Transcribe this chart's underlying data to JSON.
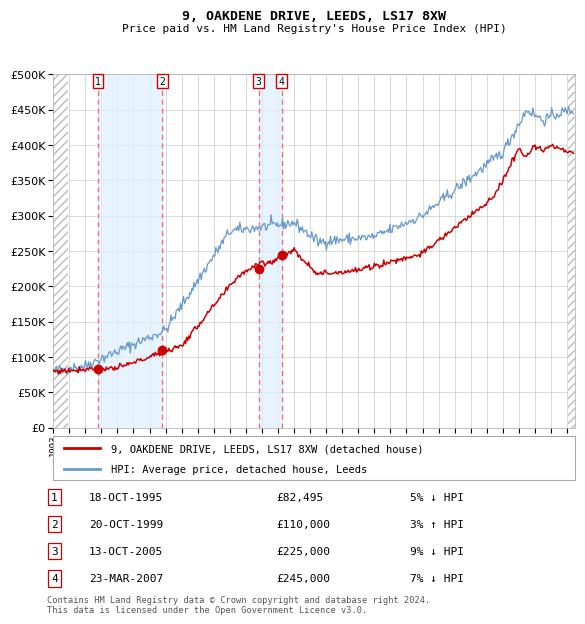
{
  "title": "9, OAKDENE DRIVE, LEEDS, LS17 8XW",
  "subtitle": "Price paid vs. HM Land Registry's House Price Index (HPI)",
  "legend_label_red": "9, OAKDENE DRIVE, LEEDS, LS17 8XW (detached house)",
  "legend_label_blue": "HPI: Average price, detached house, Leeds",
  "footer_line1": "Contains HM Land Registry data © Crown copyright and database right 2024.",
  "footer_line2": "This data is licensed under the Open Government Licence v3.0.",
  "transactions": [
    {
      "num": 1,
      "date": "18-OCT-1995",
      "price": 82495,
      "price_str": "£82,495",
      "pct": "5%",
      "dir": "↓",
      "year": 1995.79
    },
    {
      "num": 2,
      "date": "20-OCT-1999",
      "price": 110000,
      "price_str": "£110,000",
      "pct": "3%",
      "dir": "↑",
      "year": 1999.8
    },
    {
      "num": 3,
      "date": "13-OCT-2005",
      "price": 225000,
      "price_str": "£225,000",
      "pct": "9%",
      "dir": "↓",
      "year": 2005.79
    },
    {
      "num": 4,
      "date": "23-MAR-2007",
      "price": 245000,
      "price_str": "£245,000",
      "pct": "7%",
      "dir": "↓",
      "year": 2007.23
    }
  ],
  "ylim": [
    0,
    500000
  ],
  "yticks": [
    0,
    50000,
    100000,
    150000,
    200000,
    250000,
    300000,
    350000,
    400000,
    450000,
    500000
  ],
  "xlim_start": 1993.0,
  "xlim_end": 2025.5,
  "xtick_start": 1993,
  "xtick_end": 2025,
  "background_color": "#ffffff",
  "plot_bg_color": "#ffffff",
  "grid_color": "#cccccc",
  "shade_color": "#ddeeff",
  "shade_alpha": 0.7,
  "hatch_color": "#cccccc",
  "shade_regions": [
    {
      "start": 1995.79,
      "end": 1999.8
    },
    {
      "start": 2005.79,
      "end": 2007.23
    }
  ],
  "red_line_color": "#cc0000",
  "blue_line_color": "#6699cc",
  "dot_color": "#cc0000",
  "vline_color": "#ff6666",
  "box_edge_color": "#cc0000",
  "left_hatch_end": 1993.95,
  "right_hatch_start": 2025.08
}
